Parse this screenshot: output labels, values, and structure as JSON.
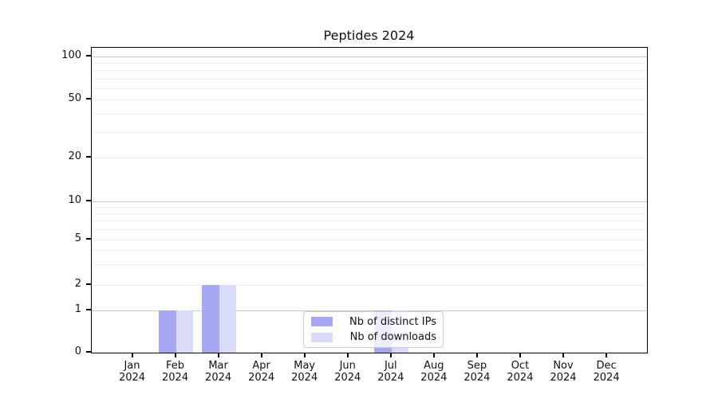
{
  "chart_data": {
    "type": "bar",
    "title": "Peptides 2024",
    "yscale": "symlog",
    "ylim": [
      0,
      100
    ],
    "yticks": [
      0,
      1,
      2,
      5,
      10,
      20,
      50,
      100
    ],
    "grid": "horizontal",
    "categories": [
      "Jan",
      "Feb",
      "Mar",
      "Apr",
      "May",
      "Jun",
      "Jul",
      "Aug",
      "Sep",
      "Oct",
      "Nov",
      "Dec"
    ],
    "category_year": "2024",
    "series": [
      {
        "name": "Nb of distinct IPs",
        "color": "#a8a8f2",
        "values": [
          0,
          1,
          2,
          0,
          0,
          0,
          1,
          0,
          0,
          0,
          0,
          0
        ]
      },
      {
        "name": "Nb of downloads",
        "color": "#d9d9f8",
        "values": [
          0,
          1,
          2,
          0,
          0,
          0,
          1,
          0,
          0,
          0,
          0,
          0
        ]
      }
    ],
    "legend": {
      "position": "inside-bottom-center",
      "items": [
        "Nb of distinct IPs",
        "Nb of downloads"
      ]
    }
  }
}
